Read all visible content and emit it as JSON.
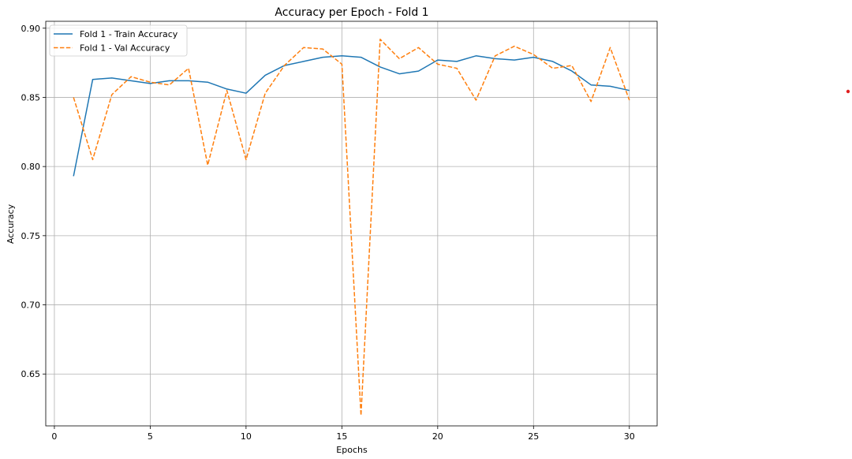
{
  "chart_data": {
    "type": "line",
    "title": "Accuracy per Epoch - Fold 1",
    "xlabel": "Epochs",
    "ylabel": "Accuracy",
    "xlim": [
      -0.45,
      31.45
    ],
    "ylim": [
      0.6125,
      0.905
    ],
    "xticks": [
      0,
      5,
      10,
      15,
      20,
      25,
      30
    ],
    "yticks": [
      0.65,
      0.7,
      0.75,
      0.8,
      0.85,
      0.9
    ],
    "grid": true,
    "legend_position": "top-left",
    "x": [
      1,
      2,
      3,
      4,
      5,
      6,
      7,
      8,
      9,
      10,
      11,
      12,
      13,
      14,
      15,
      16,
      17,
      18,
      19,
      20,
      21,
      22,
      23,
      24,
      25,
      26,
      27,
      28,
      29,
      30
    ],
    "series": [
      {
        "name": "Fold 1 - Train Accuracy",
        "color": "#1f77b4",
        "style": "solid",
        "values": [
          0.793,
          0.863,
          0.864,
          0.862,
          0.86,
          0.862,
          0.862,
          0.861,
          0.856,
          0.853,
          0.866,
          0.873,
          0.876,
          0.879,
          0.88,
          0.879,
          0.872,
          0.867,
          0.869,
          0.877,
          0.876,
          0.88,
          0.878,
          0.877,
          0.879,
          0.876,
          0.869,
          0.859,
          0.858,
          0.855
        ]
      },
      {
        "name": "Fold 1 - Val Accuracy",
        "color": "#ff7f0e",
        "style": "dashed",
        "values": [
          0.85,
          0.805,
          0.852,
          0.865,
          0.861,
          0.859,
          0.871,
          0.801,
          0.855,
          0.805,
          0.853,
          0.873,
          0.886,
          0.885,
          0.874,
          0.62,
          0.892,
          0.878,
          0.886,
          0.874,
          0.871,
          0.848,
          0.88,
          0.887,
          0.881,
          0.871,
          0.873,
          0.847,
          0.886,
          0.848
        ]
      }
    ]
  }
}
